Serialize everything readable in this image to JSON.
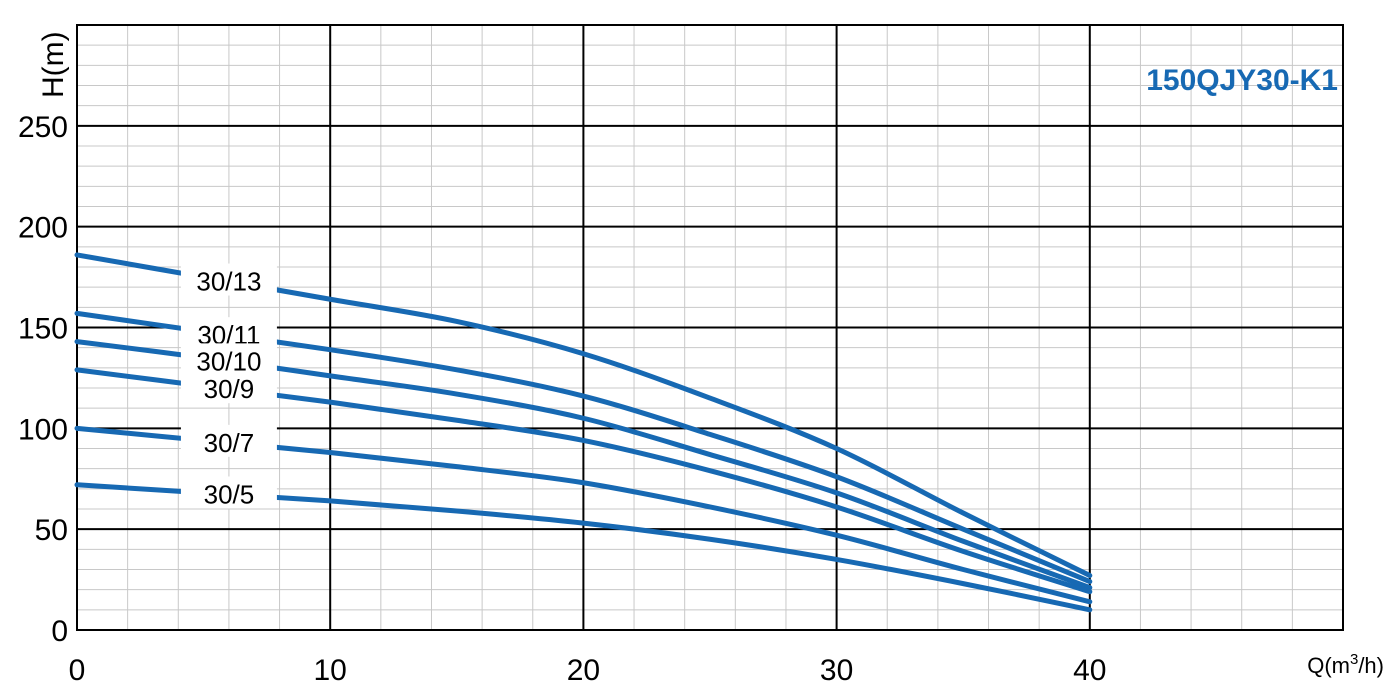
{
  "chart_data": {
    "type": "line",
    "title": "",
    "model": "150QJY30-K1",
    "xlabel": "Q(m³/h)",
    "xlabel_parts": {
      "prefix": "Q(m",
      "sup": "3",
      "suffix": "/h)"
    },
    "ylabel": "H(m)",
    "xlim": [
      0,
      50
    ],
    "ylim": [
      0,
      300
    ],
    "x_ticks": [
      0,
      10,
      20,
      30,
      40
    ],
    "y_ticks": [
      0,
      50,
      100,
      150,
      200,
      250
    ],
    "x_tick_labels": [
      "0",
      "10",
      "20",
      "30",
      "40"
    ],
    "y_tick_labels": [
      "0",
      "50",
      "100",
      "150",
      "200",
      "250"
    ],
    "grid": true,
    "minor_grid_step": {
      "x": 2,
      "y": 10
    },
    "x": [
      0,
      5,
      10,
      15,
      20,
      25,
      30,
      35,
      40
    ],
    "series": [
      {
        "name": "30/13",
        "values": [
          186,
          175,
          164,
          153,
          137,
          115,
          90,
          58,
          27
        ]
      },
      {
        "name": "30/11",
        "values": [
          157,
          148,
          139,
          129,
          116,
          97,
          76,
          50,
          24
        ]
      },
      {
        "name": "30/10",
        "values": [
          143,
          135,
          126,
          117,
          105,
          87,
          68,
          44,
          21
        ]
      },
      {
        "name": "30/9",
        "values": [
          129,
          121,
          113,
          104,
          94,
          79,
          61,
          39,
          19
        ]
      },
      {
        "name": "30/7",
        "values": [
          100,
          94,
          88,
          81,
          73,
          61,
          47,
          30,
          14
        ]
      },
      {
        "name": "30/5",
        "values": [
          72,
          68,
          64,
          59,
          53,
          45,
          35,
          23,
          10
        ]
      }
    ],
    "series_label_anchor_x": 6,
    "colors": {
      "line": "#1769b3",
      "model_label": "#1769b3",
      "major_grid": "#000000",
      "minor_grid": "#c8c8c8"
    }
  }
}
